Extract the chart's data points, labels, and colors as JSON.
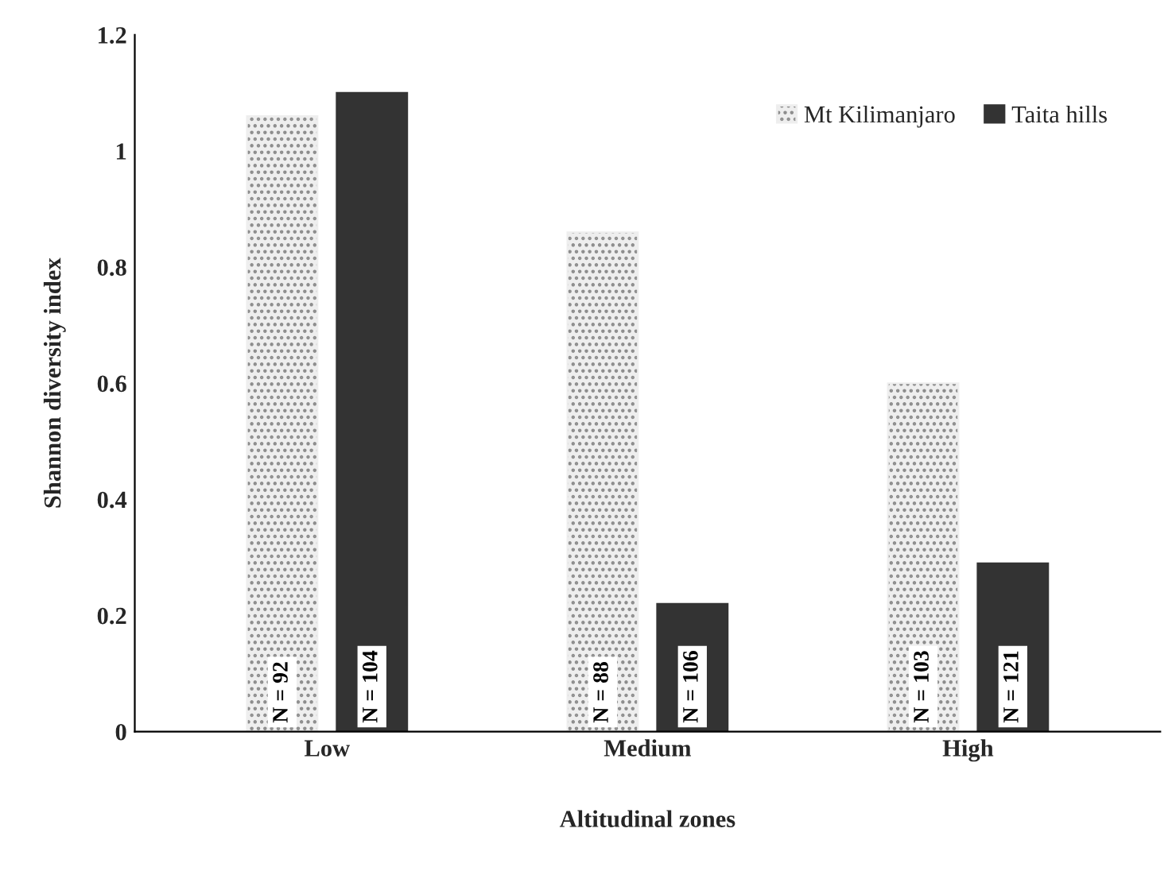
{
  "chart_data": {
    "type": "bar",
    "xlabel": "Altitudinal zones",
    "ylabel": "Shannon diversity index",
    "categories": [
      "Low",
      "Medium",
      "High"
    ],
    "series": [
      {
        "name": "Mt Kilimanjaro",
        "color": "#eeeeee",
        "values": [
          1.06,
          0.86,
          0.6
        ]
      },
      {
        "name": "Taita hills",
        "color": "#333333",
        "values": [
          1.1,
          0.22,
          0.29
        ]
      }
    ],
    "ylim": [
      0,
      1.2
    ],
    "yticks": [
      0,
      {
        "value": 0.2,
        "label": "0.2"
      },
      {
        "value": 0.4,
        "label": "0.4"
      },
      {
        "value": 0.6,
        "label": "0.6"
      },
      {
        "value": 0.8,
        "label": "0.8"
      },
      1,
      {
        "value": 1.2,
        "label": "1.2"
      }
    ],
    "annotations": [
      "N = 92",
      "N = 104",
      "N = 88",
      "N = 106",
      "N = 103",
      "N = 121"
    ],
    "grid": false,
    "legend": "top right"
  }
}
